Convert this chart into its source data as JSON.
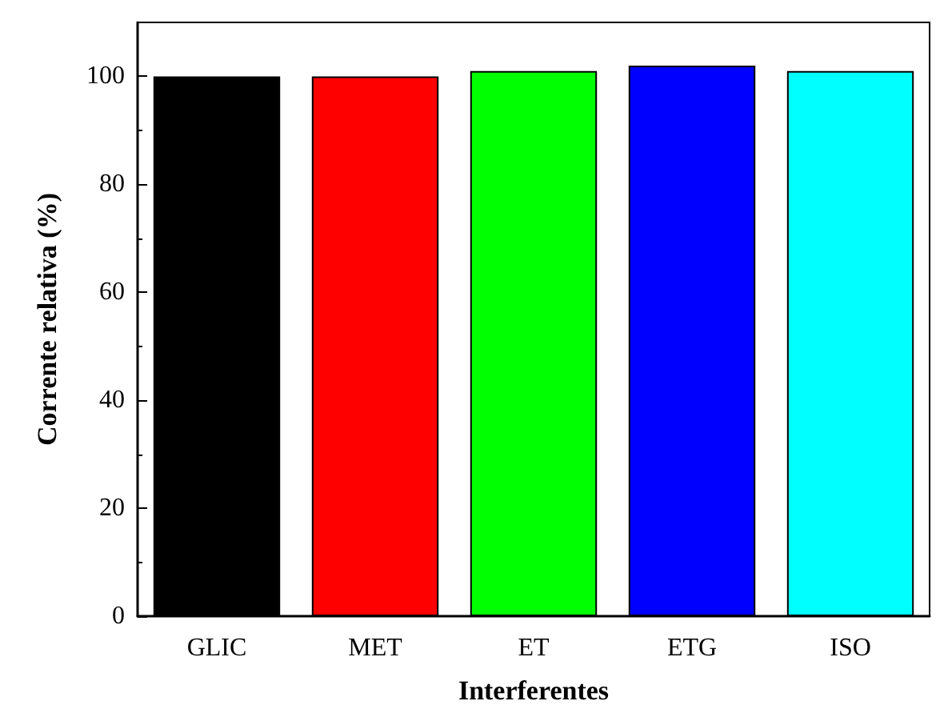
{
  "chart_data": {
    "type": "bar",
    "xlabel": "Interferentes",
    "ylabel": "Corrente relativa (%)",
    "categories": [
      "GLIC",
      "MET",
      "ET",
      "ETG",
      "ISO"
    ],
    "values": [
      100,
      100,
      101,
      102,
      101
    ],
    "colors": [
      "#000000",
      "#ff0000",
      "#00ff00",
      "#0000ff",
      "#00ffff"
    ],
    "ylim": [
      0,
      110
    ],
    "yticks": [
      0,
      20,
      40,
      60,
      80,
      100
    ],
    "grid": false
  }
}
